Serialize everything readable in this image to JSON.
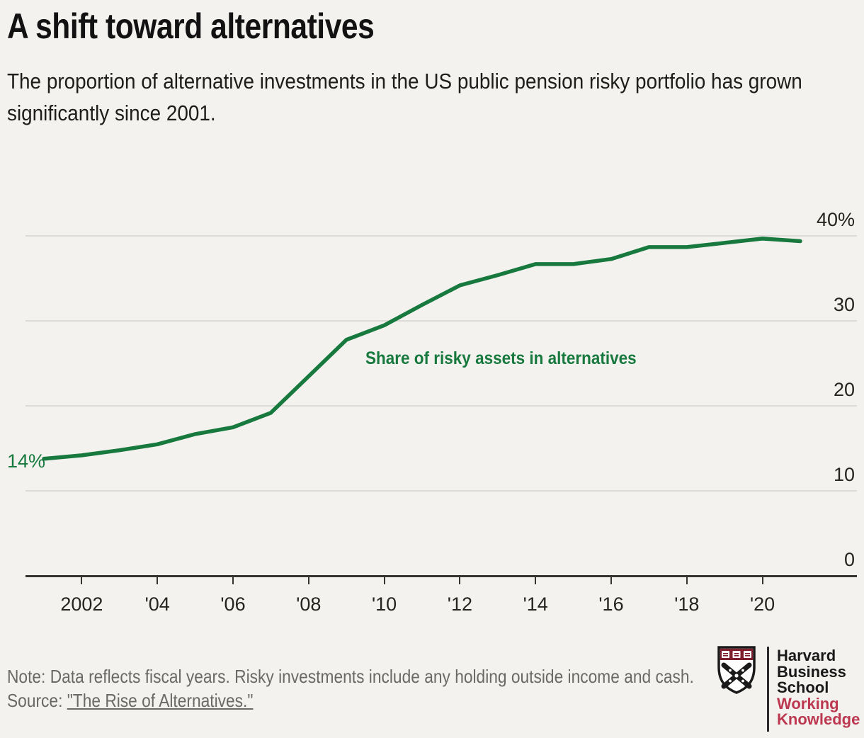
{
  "header": {
    "title": "A shift toward alternatives",
    "subtitle": "The proportion of alternative investments in the US public pension risky portfolio has grown significantly since 2001."
  },
  "chart": {
    "start_label": "14%",
    "series_label": "Share of risky assets in alternatives",
    "y_axis": {
      "labels": [
        "40%",
        "30",
        "20",
        "10",
        "0"
      ]
    },
    "x_axis": {
      "labels": [
        "2002",
        "'04",
        "'06",
        "'08",
        "'10",
        "'12",
        "'14",
        "'16",
        "'18",
        "'20"
      ]
    }
  },
  "chart_data": {
    "type": "line",
    "title": "A shift toward alternatives",
    "subtitle": "The proportion of alternative investments in the US public pension risky portfolio has grown significantly since 2001.",
    "x": [
      2001,
      2002,
      2003,
      2004,
      2005,
      2006,
      2007,
      2008,
      2009,
      2010,
      2011,
      2012,
      2013,
      2014,
      2015,
      2016,
      2017,
      2018,
      2019,
      2020,
      2021
    ],
    "series": [
      {
        "name": "Share of risky assets in alternatives",
        "color": "#17793e",
        "values": [
          13.8,
          14.2,
          14.8,
          15.5,
          16.7,
          17.5,
          19.2,
          23.5,
          27.8,
          29.5,
          31.9,
          34.2,
          35.4,
          36.7,
          36.7,
          37.3,
          38.7,
          38.7,
          39.2,
          39.7,
          39.4
        ]
      }
    ],
    "ylim": [
      0,
      42
    ],
    "y_ticks": [
      40,
      30,
      20,
      10,
      0
    ],
    "x_tick_years": [
      2002,
      2004,
      2006,
      2008,
      2010,
      2012,
      2014,
      2016,
      2018,
      2020
    ],
    "grid": "horizontal",
    "legend_position": "inside-middle",
    "annotations": [
      {
        "text": "14%",
        "x": 2001,
        "y": 13.8
      },
      {
        "text": "Share of risky assets in alternatives",
        "x": 2011,
        "y": 25.5
      }
    ]
  },
  "footer": {
    "note": "Note: Data reflects fiscal years. Risky investments include any holding outside income and cash.",
    "source_prefix": "Source: ",
    "source_link": "\"The Rise of Alternatives.\""
  },
  "logo": {
    "lines_black": [
      "Harvard",
      "Business",
      "School"
    ],
    "lines_red": [
      "Working",
      "Knowledge"
    ]
  },
  "colors": {
    "background": "#f3f2ef",
    "accent_green": "#17793e",
    "grid_gray": "#dcdad6",
    "axis_dark": "#36342f",
    "footer_gray": "#6b6965",
    "logo_crimson": "#bb3850",
    "shield_maroon": "#7d1f2d"
  }
}
